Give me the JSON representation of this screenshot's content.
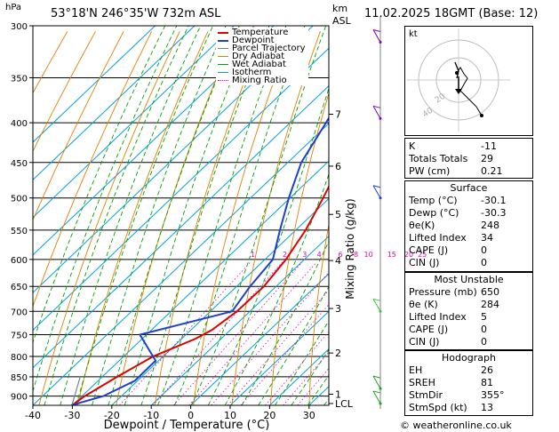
{
  "header": {
    "hpa_label": "hPa",
    "location": "53°18'N  246°35'W  732m  ASL",
    "km_label": "km",
    "asl_label": "ASL",
    "datetime": "11.02.2025  18GMT  (Base: 12)"
  },
  "legend": [
    {
      "label": "Temperature",
      "color": "#e00000"
    },
    {
      "label": "Dewpoint",
      "color": "#1e3fd0"
    },
    {
      "label": "Parcel Trajectory",
      "color": "#808080"
    },
    {
      "label": "Dry Adiabat",
      "color": "#e08000"
    },
    {
      "label": "Wet Adiabat",
      "color": "#00a000"
    },
    {
      "label": "Isotherm",
      "color": "#00a0e0"
    },
    {
      "label": "Mixing Ratio",
      "color": "#e000c0"
    }
  ],
  "chart_data": {
    "type": "line",
    "title": "53°18'N  246°35'W  732m  ASL",
    "xlabel": "Dewpoint / Temperature (°C)",
    "ylabel": "hPa",
    "xlim": [
      -40,
      35
    ],
    "ylim": [
      300,
      925
    ],
    "pressure_ticks": [
      "300",
      "350",
      "400",
      "450",
      "500",
      "550",
      "600",
      "650",
      "700",
      "750",
      "800",
      "850",
      "900"
    ],
    "temp_ticks": [
      "-40",
      "-30",
      "-20",
      "-10",
      "0",
      "10",
      "20",
      "30"
    ],
    "km_ticks": [
      {
        "label": "7",
        "p": 390
      },
      {
        "label": "6",
        "p": 455
      },
      {
        "label": "5",
        "p": 525
      },
      {
        "label": "4",
        "p": 602
      },
      {
        "label": "3",
        "p": 694
      },
      {
        "label": "2",
        "p": 792
      },
      {
        "label": "1",
        "p": 895
      },
      {
        "label": "LCL",
        "p": 920
      }
    ],
    "mixing_ratio_labels": [
      "1",
      "2",
      "3",
      "4",
      "6",
      "8",
      "10",
      "15",
      "20",
      "25"
    ],
    "mixing_ratio_axis_label": "Mixing Ratio (g/kg)",
    "series": [
      {
        "name": "Temperature",
        "color": "#e00000",
        "p": [
          925,
          900,
          850,
          800,
          760,
          740,
          700,
          650,
          600,
          550,
          500,
          450,
          400,
          350,
          300
        ],
        "t": [
          -30.1,
          -29.3,
          -26.2,
          -22.5,
          -16.6,
          -14.7,
          -13.3,
          -13.1,
          -14.7,
          -17.5,
          -21.6,
          -26.5,
          -32.8,
          -38.8,
          -44.8
        ]
      },
      {
        "name": "Dewpoint",
        "color": "#1e3fd0",
        "p": [
          925,
          900,
          860,
          810,
          750,
          700,
          650,
          600,
          550,
          500,
          450,
          400,
          350,
          300
        ],
        "t": [
          -30.3,
          -24.6,
          -20.7,
          -20.8,
          -31.7,
          -14.5,
          -16.6,
          -18.0,
          -24.0,
          -30.3,
          -36.6,
          -40.9,
          -46.0,
          -51.6
        ]
      }
    ]
  },
  "indices": {
    "rows": [
      {
        "label": "K",
        "value": "-11"
      },
      {
        "label": "Totals Totals",
        "value": "29"
      },
      {
        "label": "PW (cm)",
        "value": "0.21"
      }
    ]
  },
  "surface": {
    "title": "Surface",
    "rows": [
      {
        "label": "Temp (°C)",
        "value": "-30.1"
      },
      {
        "label": "Dewp (°C)",
        "value": "-30.3"
      },
      {
        "label": "θe(K)",
        "value": "248"
      },
      {
        "label": "Lifted Index",
        "value": "34"
      },
      {
        "label": "CAPE (J)",
        "value": "0"
      },
      {
        "label": "CIN (J)",
        "value": "0"
      }
    ]
  },
  "most_unstable": {
    "title": "Most Unstable",
    "rows": [
      {
        "label": "Pressure (mb)",
        "value": "650"
      },
      {
        "label": "θe (K)",
        "value": "284"
      },
      {
        "label": "Lifted Index",
        "value": "5"
      },
      {
        "label": "CAPE (J)",
        "value": "0"
      },
      {
        "label": "CIN (J)",
        "value": "0"
      }
    ]
  },
  "hodograph_table": {
    "title": "Hodograph",
    "rows": [
      {
        "label": "EH",
        "value": "26"
      },
      {
        "label": "SREH",
        "value": "81"
      },
      {
        "label": "StmDir",
        "value": "355°"
      },
      {
        "label": "StmSpd (kt)",
        "value": "13"
      }
    ]
  },
  "hodograph": {
    "unit_label": "kt",
    "ring_labels": [
      "20",
      "40"
    ]
  },
  "footer": {
    "copyright": "© weatheronline.co.uk"
  }
}
